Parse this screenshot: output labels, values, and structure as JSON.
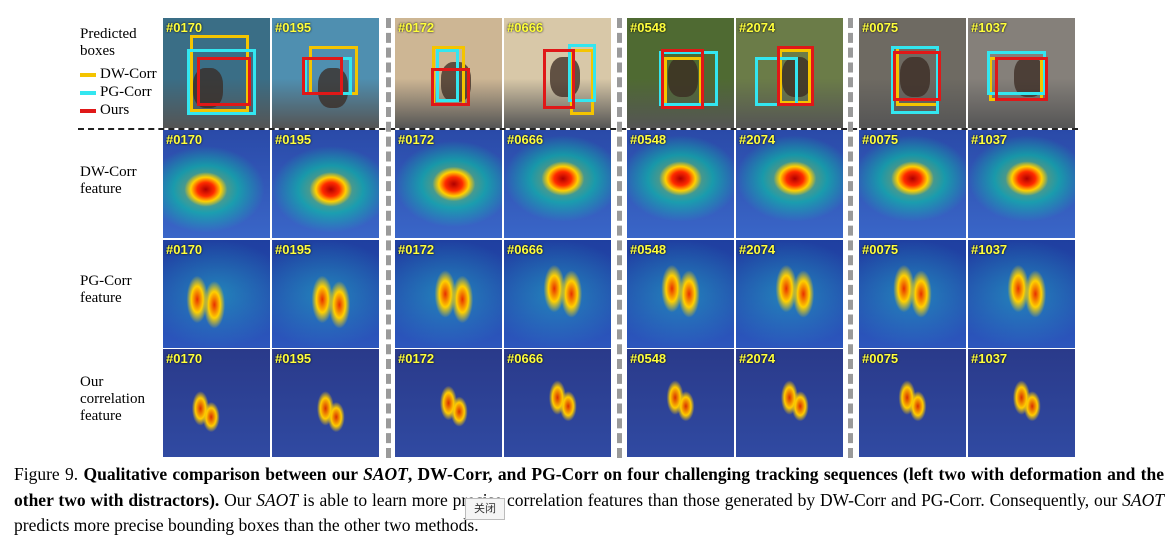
{
  "row_labels": {
    "predicted": [
      "Predicted",
      "boxes"
    ],
    "dw": [
      "DW-Corr",
      "feature"
    ],
    "pg": [
      "PG-Corr",
      "feature"
    ],
    "ours": [
      "Our",
      "correlation",
      "feature"
    ]
  },
  "legend": [
    {
      "label": "DW-Corr",
      "color": "#f4c400"
    },
    {
      "label": "PG-Corr",
      "color": "#33e6f0"
    },
    {
      "label": "Ours",
      "color": "#e01818"
    }
  ],
  "groups": [
    {
      "frames": [
        "#0170",
        "#0195"
      ],
      "scene": [
        "#3a6e86",
        "#4f8fb0"
      ]
    },
    {
      "frames": [
        "#0172",
        "#0666"
      ],
      "scene": [
        "#cdb694",
        "#d8c8a8"
      ]
    },
    {
      "frames": [
        "#0548",
        "#2074"
      ],
      "scene": [
        "#4f6a32",
        "#6b7c48"
      ]
    },
    {
      "frames": [
        "#0075",
        "#1037"
      ],
      "scene": [
        "#6e6a62",
        "#85807a"
      ]
    }
  ],
  "caption": {
    "fig": "Figure 9. ",
    "bold1": "Qualitative comparison between our ",
    "bold_it": "SAOT",
    "bold2": ", DW-Corr, and PG-Corr on four challenging tracking sequences (left two with deformation and the other two with distractors).",
    "rest1": " Our ",
    "rest_it": "SAOT",
    "rest2": " is able to learn more precise correlation features than those generated by DW-Corr and PG-Corr. Consequently, our ",
    "rest_it2": "SAOT",
    "rest3": " predicts more precise bounding boxes than the other two methods."
  },
  "tooltip": "关闭"
}
